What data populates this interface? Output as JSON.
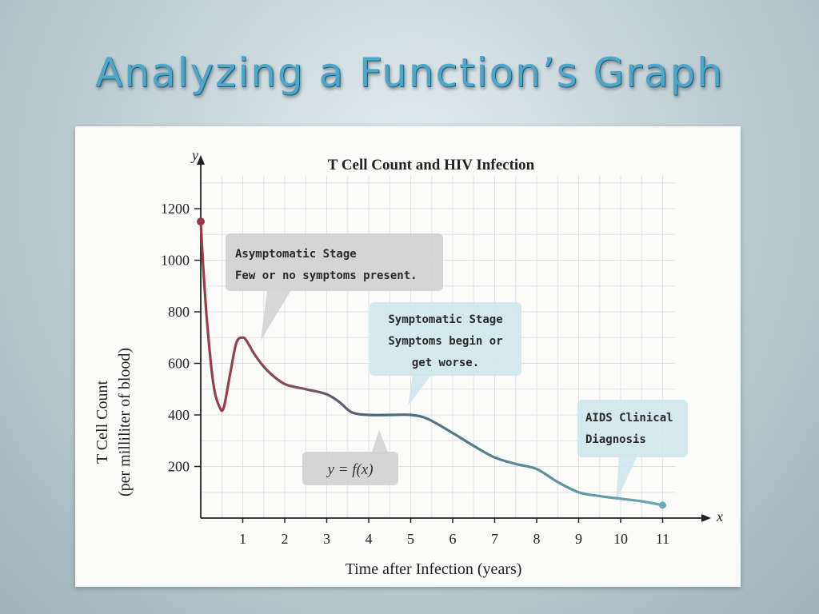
{
  "slide": {
    "title": "Analyzing a Function’s Graph"
  },
  "chart_data": {
    "type": "line",
    "title": "T Cell Count and HIV Infection",
    "xlabel": "Time after Infection (years)",
    "ylabel": [
      "T Cell Count",
      "(per milliliter of blood)"
    ],
    "x_axis_var": "x",
    "y_axis_var": "y",
    "xlim": [
      0,
      11
    ],
    "ylim": [
      0,
      1200
    ],
    "x_ticks": [
      1,
      2,
      3,
      4,
      5,
      6,
      7,
      8,
      9,
      10,
      11
    ],
    "y_ticks": [
      200,
      400,
      600,
      800,
      1000,
      1200
    ],
    "grid": true,
    "series": [
      {
        "name": "y = f(x)",
        "x": [
          0,
          0.05,
          0.15,
          0.3,
          0.45,
          0.55,
          0.7,
          0.85,
          1.0,
          1.1,
          1.3,
          1.6,
          2.0,
          2.5,
          3.0,
          3.3,
          3.6,
          4.0,
          4.5,
          5.0,
          5.4,
          6.0,
          6.5,
          7.0,
          7.5,
          8.0,
          8.5,
          9.0,
          9.5,
          10.0,
          10.5,
          11.0
        ],
        "y": [
          1150,
          1000,
          760,
          520,
          430,
          430,
          560,
          680,
          700,
          685,
          630,
          570,
          520,
          500,
          480,
          450,
          410,
          400,
          400,
          400,
          385,
          330,
          280,
          235,
          210,
          190,
          140,
          100,
          85,
          75,
          65,
          50
        ]
      }
    ],
    "annotations": [
      {
        "id": "asymptomatic",
        "lines": [
          "Asymptomatic Stage",
          "Few or no symptoms present."
        ]
      },
      {
        "id": "symptomatic",
        "lines": [
          "Symptomatic Stage",
          "Symptoms begin or",
          "get worse."
        ]
      },
      {
        "id": "aids",
        "lines": [
          "AIDS Clinical",
          "Diagnosis"
        ]
      },
      {
        "id": "function",
        "lines": [
          "y = f(x)"
        ]
      }
    ],
    "colors": {
      "curve_early": "#9b3a4c",
      "curve_mid": "#4a6878",
      "curve_late": "#6ca7b6",
      "callout_gray": "#d0d0d0",
      "callout_blue": "#cfe5ec"
    }
  }
}
